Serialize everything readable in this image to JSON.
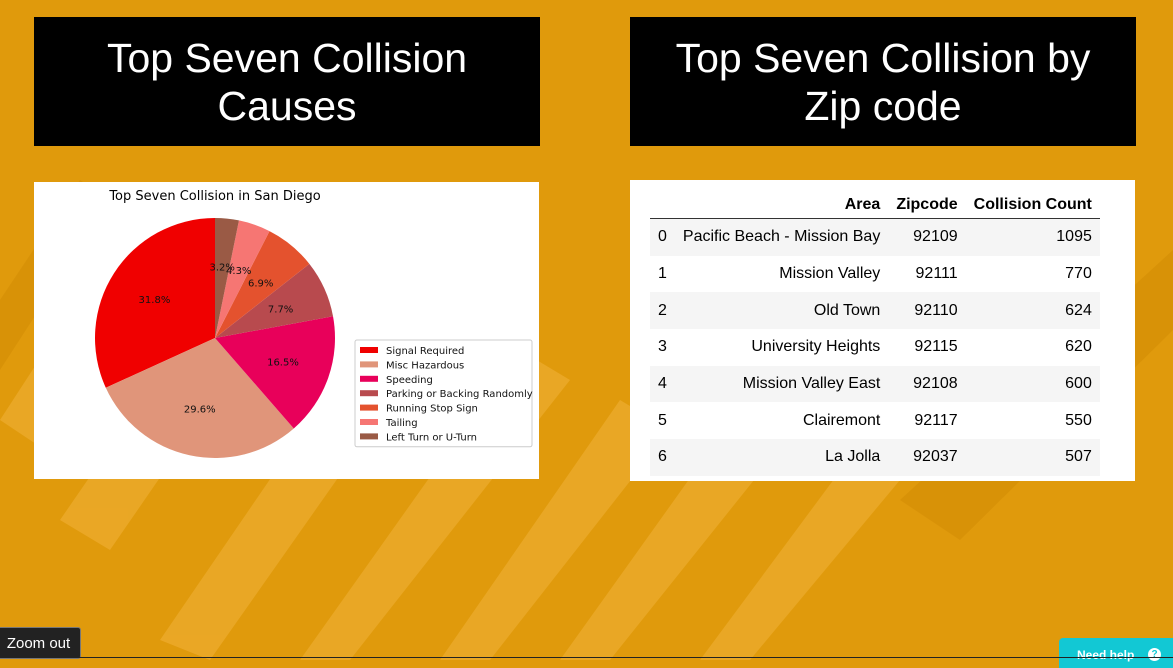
{
  "slide": {
    "left_title": "Top Seven Collision Causes",
    "right_title": "Top Seven Collision by Zip code"
  },
  "chart_data": {
    "type": "pie",
    "title": "Top Seven Collision in San Diego",
    "categories": [
      "Signal Required",
      "Misc Hazardous",
      "Speeding",
      "Parking or Backing Randomly",
      "Running Stop Sign",
      "Tailing",
      "Left Turn or U-Turn"
    ],
    "values": [
      31.8,
      29.6,
      16.5,
      7.7,
      6.9,
      4.3,
      3.2
    ],
    "labels": [
      "31.8%",
      "29.6%",
      "16.5%",
      "7.7%",
      "6.9%",
      "4.3%",
      "3.2%"
    ],
    "colors": [
      "#F00000",
      "#E0957A",
      "#E8005A",
      "#B84A4E",
      "#E4522E",
      "#F67673",
      "#9A5A45"
    ],
    "legend_position": "right"
  },
  "table": {
    "headers": [
      "",
      "Area",
      "Zipcode",
      "Collision Count"
    ],
    "rows": [
      [
        "0",
        "Pacific Beach - Mission Bay",
        "92109",
        "1095"
      ],
      [
        "1",
        "Mission Valley",
        "92111",
        "770"
      ],
      [
        "2",
        "Old Town",
        "92110",
        "624"
      ],
      [
        "3",
        "University Heights",
        "92115",
        "620"
      ],
      [
        "4",
        "Mission Valley East",
        "92108",
        "600"
      ],
      [
        "5",
        "Clairemont",
        "92117",
        "550"
      ],
      [
        "6",
        "La Jolla",
        "92037",
        "507"
      ]
    ]
  },
  "controls": {
    "zoom_out": "Zoom out",
    "need_help": "Need help",
    "help_glyph": "?"
  }
}
